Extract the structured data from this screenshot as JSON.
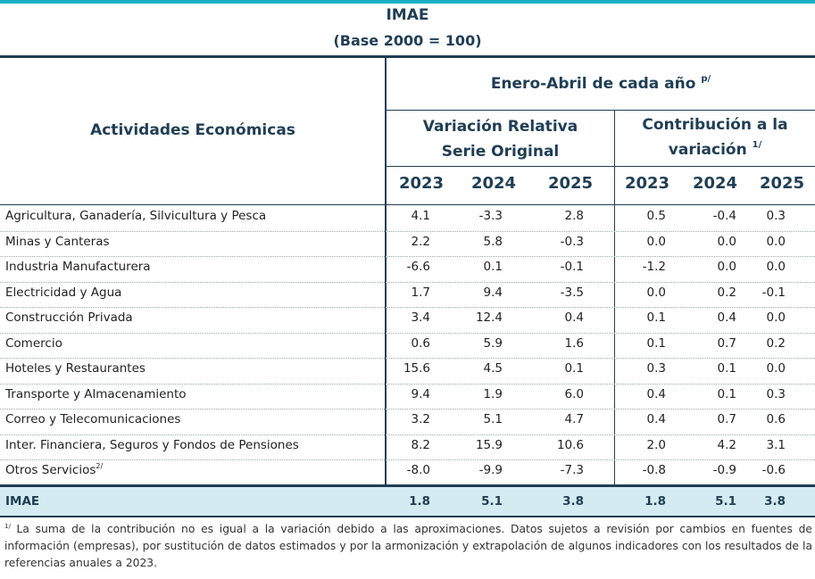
{
  "title": "IMAE",
  "subtitle": "(Base 2000 = 100)",
  "header": {
    "activities": "Actividades Económicas",
    "period": "Enero-Abril de cada año",
    "period_mark": "p/",
    "relative_line1": "Variación Relativa",
    "relative_line2": "Serie Original",
    "contribution_line1": "Contribución a la",
    "contribution_line2": "variación",
    "contribution_mark": "1/",
    "years": [
      "2023",
      "2024",
      "2025",
      "2023",
      "2024",
      "2025"
    ]
  },
  "rows": [
    {
      "label": "Agricultura, Ganadería, Silvicultura y Pesca",
      "mark": "",
      "values": [
        "4.1",
        "-3.3",
        "2.8",
        "0.5",
        "-0.4",
        "0.3"
      ]
    },
    {
      "label": "Minas y Canteras",
      "mark": "",
      "values": [
        "2.2",
        "5.8",
        "-0.3",
        "0.0",
        "0.0",
        "0.0"
      ]
    },
    {
      "label": "Industria Manufacturera",
      "mark": "",
      "values": [
        "-6.6",
        "0.1",
        "-0.1",
        "-1.2",
        "0.0",
        "0.0"
      ]
    },
    {
      "label": "Electricidad y Agua",
      "mark": "",
      "values": [
        "1.7",
        "9.4",
        "-3.5",
        "0.0",
        "0.2",
        "-0.1"
      ]
    },
    {
      "label": "Construcción Privada",
      "mark": "",
      "values": [
        "3.4",
        "12.4",
        "0.4",
        "0.1",
        "0.4",
        "0.0"
      ]
    },
    {
      "label": "Comercio",
      "mark": "",
      "values": [
        "0.6",
        "5.9",
        "1.6",
        "0.1",
        "0.7",
        "0.2"
      ]
    },
    {
      "label": "Hoteles y Restaurantes",
      "mark": "",
      "values": [
        "15.6",
        "4.5",
        "0.1",
        "0.3",
        "0.1",
        "0.0"
      ]
    },
    {
      "label": "Transporte y Almacenamiento",
      "mark": "",
      "values": [
        "9.4",
        "1.9",
        "6.0",
        "0.4",
        "0.1",
        "0.3"
      ]
    },
    {
      "label": "Correo y Telecomunicaciones",
      "mark": "",
      "values": [
        "3.2",
        "5.1",
        "4.7",
        "0.4",
        "0.7",
        "0.6"
      ]
    },
    {
      "label": "Inter. Financiera, Seguros y Fondos de Pensiones",
      "mark": "",
      "values": [
        "8.2",
        "15.9",
        "10.6",
        "2.0",
        "4.2",
        "3.1"
      ]
    },
    {
      "label": "Otros Servicios",
      "mark": "2/",
      "values": [
        "-8.0",
        "-9.9",
        "-7.3",
        "-0.8",
        "-0.9",
        "-0.6"
      ]
    }
  ],
  "total": {
    "label": "IMAE",
    "values": [
      "1.8",
      "5.1",
      "3.8",
      "1.8",
      "5.1",
      "3.8"
    ]
  },
  "footnote": {
    "mark": "1/",
    "text": "La suma de la contribución no es igual a la variación debido a las aproximaciones. Datos sujetos a revisión por cambios en fuentes de información (empresas), por sustitución de datos estimados y por la armonización y extrapolación de algunos indicadores con los resultados de la referencias anuales a 2023."
  },
  "colors": {
    "accent_bar": "#17b0c4",
    "header_text": "#1f3e55",
    "total_band": "#d4ebf1"
  }
}
